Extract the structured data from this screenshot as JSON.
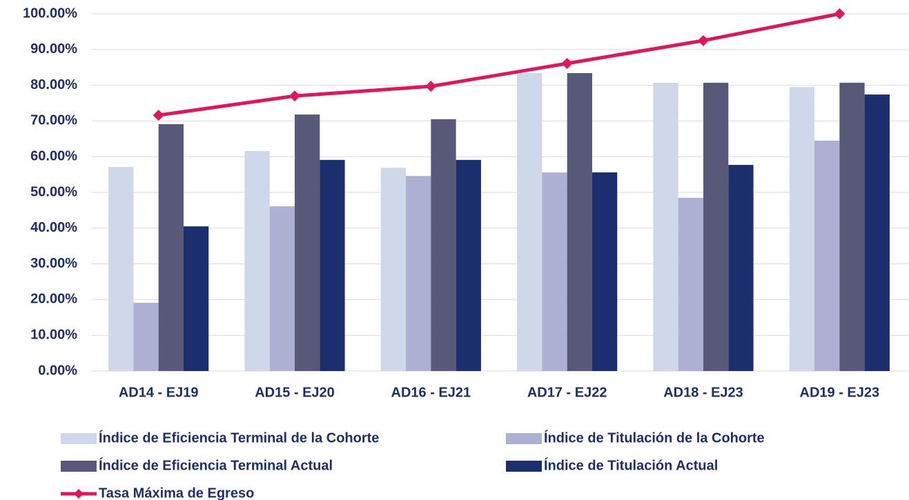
{
  "chart_data": {
    "type": "bar",
    "categories": [
      "AD14 - EJ19",
      "AD15 - EJ20",
      "AD16 - EJ21",
      "AD17 - EJ22",
      "AD18 - EJ23",
      "AD19 - EJ23"
    ],
    "series": [
      {
        "name": "Índice de Eficiencia Terminal de la Cohorte",
        "color": "#cfd8ea",
        "values": [
          57.1,
          61.6,
          56.9,
          83.4,
          80.7,
          79.5
        ]
      },
      {
        "name": "Índice de Titulación de la Cohorte",
        "color": "#adb0d2",
        "values": [
          19.1,
          46.1,
          54.6,
          55.6,
          48.5,
          64.5
        ]
      },
      {
        "name": "Índice de Eficiencia Terminal Actual",
        "color": "#585878",
        "values": [
          69.1,
          71.8,
          70.5,
          83.4,
          80.7,
          80.7
        ]
      },
      {
        "name": "Índice de Titulación Actual",
        "color": "#1b2f6e",
        "values": [
          40.5,
          59.1,
          59.1,
          55.6,
          57.7,
          77.4
        ]
      },
      {
        "name": "Tasa Máxima de Egreso",
        "color": "#e0145f",
        "type": "line",
        "values": [
          71.6,
          77.0,
          79.7,
          86.1,
          92.5,
          100.0
        ]
      }
    ],
    "ylim": [
      0,
      100
    ],
    "yticks": [
      {
        "value": 0,
        "label": "0.00%"
      },
      {
        "value": 10,
        "label": "10.00%"
      },
      {
        "value": 20,
        "label": "20.00%"
      },
      {
        "value": 30,
        "label": "30.00%"
      },
      {
        "value": 40,
        "label": "40.00%"
      },
      {
        "value": 50,
        "label": "50.00%"
      },
      {
        "value": 60,
        "label": "60.00%"
      },
      {
        "value": 70,
        "label": "70.00%"
      },
      {
        "value": 80,
        "label": "80.00%"
      },
      {
        "value": 90,
        "label": "90.00%"
      },
      {
        "value": 100,
        "label": "100.00%"
      }
    ],
    "grid": true,
    "legend": "bottom"
  }
}
